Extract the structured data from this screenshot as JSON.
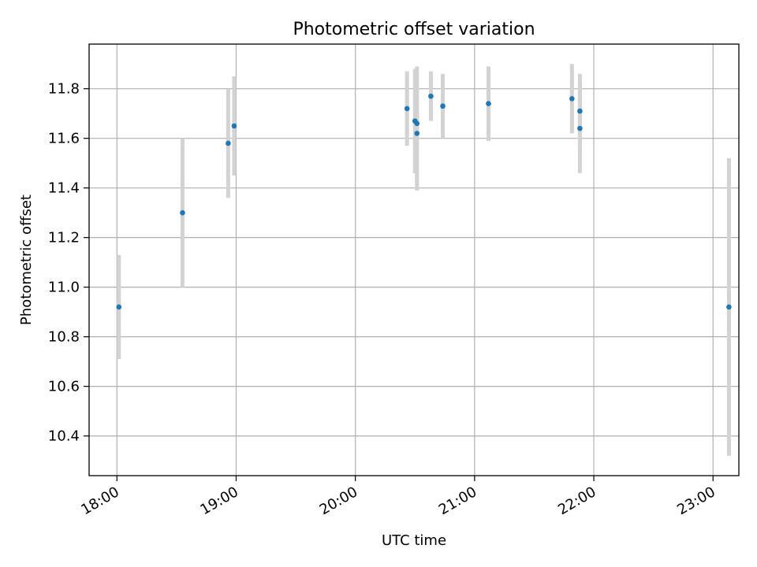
{
  "chart_data": {
    "type": "scatter",
    "title": "Photometric offset variation",
    "xlabel": "UTC time",
    "ylabel": "Photometric offset",
    "x_ticks": [
      "18:00",
      "19:00",
      "20:00",
      "21:00",
      "22:00",
      "23:00"
    ],
    "y_ticks": [
      "10.4",
      "10.6",
      "10.8",
      "11.0",
      "11.2",
      "11.4",
      "11.6",
      "11.8"
    ],
    "xlim": [
      "17:46",
      "23:13"
    ],
    "ylim": [
      10.24,
      11.98
    ],
    "grid": true,
    "colors": {
      "point": "#1f77b4",
      "errorbar": "#d3d3d3",
      "grid": "#b0b0b0"
    },
    "points": [
      {
        "x": "18:01",
        "y": 10.92,
        "yerr": 0.21
      },
      {
        "x": "18:33",
        "y": 11.3,
        "yerr": 0.3
      },
      {
        "x": "18:56",
        "y": 11.58,
        "yerr": 0.22
      },
      {
        "x": "18:59",
        "y": 11.65,
        "yerr": 0.2
      },
      {
        "x": "20:26",
        "y": 11.72,
        "yerr": 0.15
      },
      {
        "x": "20:30",
        "y": 11.67,
        "yerr": 0.21
      },
      {
        "x": "20:31",
        "y": 11.66,
        "yerr": 0.23
      },
      {
        "x": "20:31",
        "y": 11.62,
        "yerr": 0.23
      },
      {
        "x": "20:38",
        "y": 11.77,
        "yerr": 0.1
      },
      {
        "x": "20:44",
        "y": 11.73,
        "yerr": 0.13
      },
      {
        "x": "21:07",
        "y": 11.74,
        "yerr": 0.15
      },
      {
        "x": "21:49",
        "y": 11.76,
        "yerr": 0.14
      },
      {
        "x": "21:53",
        "y": 11.71,
        "yerr": 0.15
      },
      {
        "x": "21:53",
        "y": 11.64,
        "yerr": 0.18
      },
      {
        "x": "23:08",
        "y": 10.92,
        "yerr": 0.6
      }
    ]
  }
}
